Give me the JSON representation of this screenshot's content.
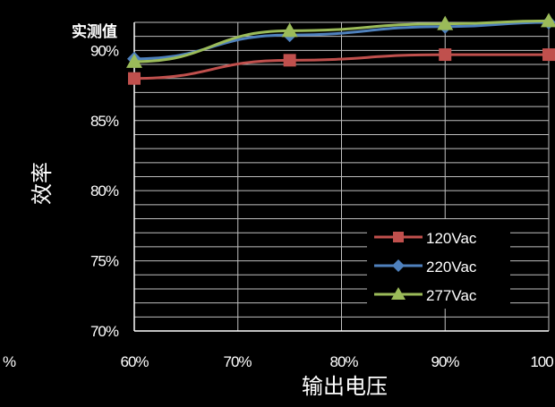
{
  "chart_data": {
    "type": "line",
    "title": "",
    "top_fragment": "实测值",
    "xlabel": "输出电压",
    "ylabel": "效率",
    "x_ticks": [
      "%",
      "60%",
      "70%",
      "80%",
      "90%",
      "100"
    ],
    "y_ticks": [
      "70%",
      "75%",
      "80%",
      "85%",
      "90%"
    ],
    "x": [
      0.6,
      0.75,
      0.9,
      1.0
    ],
    "xlim": [
      0.6,
      1.0
    ],
    "ylim": [
      0.7,
      0.92
    ],
    "grid": true,
    "legend_position": "bottom-right",
    "series": [
      {
        "name": "120Vac",
        "color": "#c0504d",
        "marker": "square",
        "values": [
          0.88,
          0.893,
          0.897,
          0.897
        ]
      },
      {
        "name": "220Vac",
        "color": "#4f81bd",
        "marker": "diamond",
        "values": [
          0.894,
          0.911,
          0.917,
          0.92
        ]
      },
      {
        "name": "277Vac",
        "color": "#9bbb59",
        "marker": "triangle",
        "values": [
          0.892,
          0.914,
          0.919,
          0.921
        ]
      }
    ]
  }
}
